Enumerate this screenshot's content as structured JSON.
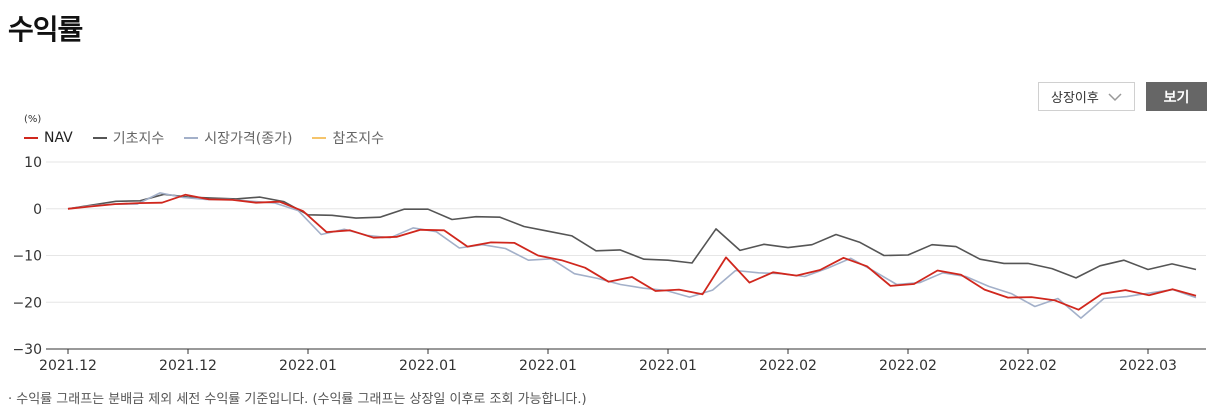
{
  "page": {
    "title": "수익률",
    "footnote": "· 수익률 그래프는 분배금 제외 세전 수익률 기준입니다. (수익률 그래프는 상장일 이후로 조회 가능합니다.)"
  },
  "controls": {
    "period_selected": "상장이후",
    "view_button_label": "보기"
  },
  "chart_data": {
    "type": "line",
    "unit_label": "(%)",
    "ylim": [
      -30,
      10
    ],
    "yticks": [
      10,
      0,
      -10,
      -20,
      -30
    ],
    "ytick_labels": [
      "10",
      "0",
      "−10",
      "−20",
      "−30"
    ],
    "xtick_labels": [
      "2021.12",
      "2021.12",
      "2022.01",
      "2022.01",
      "2022.01",
      "2022.01",
      "2022.02",
      "2022.02",
      "2022.02",
      "2022.03"
    ],
    "grid": true,
    "legend_position": "top-left",
    "series": [
      {
        "name": "NAV",
        "color": "#d0271d",
        "values": [
          0,
          0.5,
          1,
          1.2,
          1.3,
          3,
          2,
          1.9,
          1.3,
          1.5,
          -0.5,
          -5,
          -4.6,
          -6.2,
          -6,
          -4.5,
          -4.6,
          -8.1,
          -7.2,
          -7.3,
          -10,
          -11,
          -12.6,
          -15.6,
          -14.6,
          -17.6,
          -17.3,
          -18.3,
          -10.4,
          -15.8,
          -13.6,
          -14.3,
          -13.1,
          -10.5,
          -12.3,
          -16.5,
          -16.1,
          -13.2,
          -14.1,
          -17.3,
          -19,
          -18.9,
          -19.6,
          -21.6,
          -18.2,
          -17.4,
          -18.5,
          -17.2,
          -18.6
        ]
      },
      {
        "name": "기초지수",
        "color": "#555555",
        "values": [
          0,
          0.8,
          1.6,
          1.7,
          3.1,
          2.5,
          2.3,
          2.1,
          2.5,
          1.5,
          -1.3,
          -1.4,
          -2,
          -1.8,
          -0.1,
          -0.1,
          -2.3,
          -1.7,
          -1.8,
          -3.8,
          -4.8,
          -5.8,
          -9,
          -8.8,
          -10.8,
          -11,
          -11.6,
          -4.3,
          -8.9,
          -7.6,
          -8.3,
          -7.7,
          -5.5,
          -7.2,
          -10,
          -9.9,
          -7.7,
          -8.1,
          -10.8,
          -11.7,
          -11.7,
          -12.8,
          -14.8,
          -12.2,
          -11,
          -13,
          -11.8,
          -13
        ]
      },
      {
        "name": "시장가격(종가)",
        "color": "#a3b0c9",
        "values": [
          0,
          0.6,
          1,
          1,
          3.4,
          2.4,
          2,
          2,
          1.6,
          1.2,
          -0.4,
          -5.5,
          -4.4,
          -5.7,
          -6.2,
          -4.1,
          -4.9,
          -8.4,
          -7.7,
          -8.5,
          -11,
          -10.7,
          -13.9,
          -14.9,
          -16.2,
          -17,
          -17.5,
          -18.9,
          -17.4,
          -13.2,
          -13.7,
          -13.9,
          -14.5,
          -12.7,
          -10.6,
          -13.3,
          -16.2,
          -15.8,
          -13.7,
          -14.5,
          -16.6,
          -18.2,
          -20.9,
          -19.2,
          -23.4,
          -19.2,
          -18.8,
          -18,
          -17.3,
          -19
        ]
      },
      {
        "name": "참조지수",
        "color": "#f5c46b",
        "values": []
      }
    ]
  }
}
